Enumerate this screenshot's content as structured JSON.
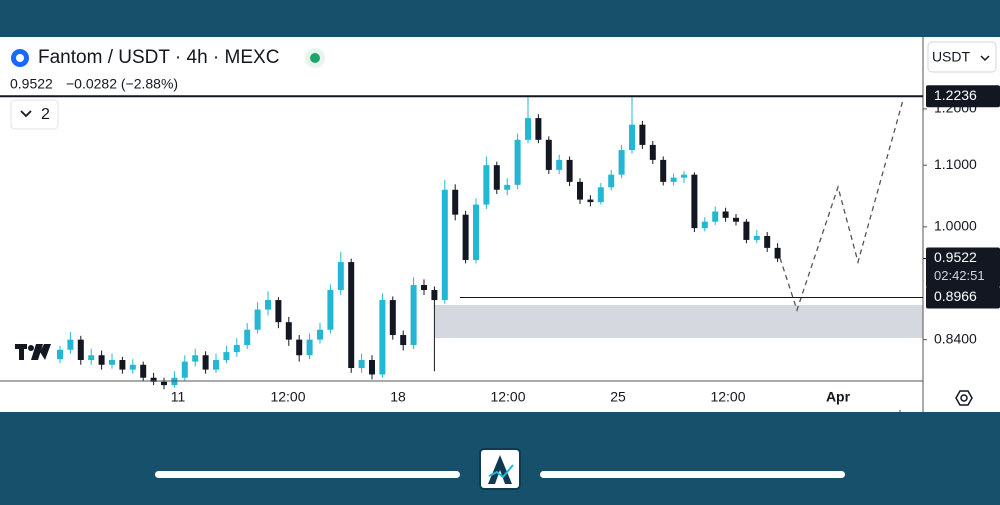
{
  "header": {
    "title": "Fantom / USDT · 4h · MEXC",
    "price": "0.9522",
    "change": "−0.0282 (−2.88%)",
    "indicator_count": "2",
    "currency": "USDT"
  },
  "chart_data": {
    "type": "candlestick",
    "log_scale": true,
    "ylim": [
      0.788,
      1.341
    ],
    "yticks": [
      {
        "value": 1.2,
        "label": "1.2000"
      },
      {
        "value": 1.1,
        "label": "1.1000"
      },
      {
        "value": 1.0,
        "label": "1.0000"
      },
      {
        "value": 0.84,
        "label": "0.8400"
      }
    ],
    "x_labels": [
      "11",
      "12:00",
      "18",
      "12:00",
      "25",
      "12:00",
      "Apr"
    ],
    "up_color": "#22b8d4",
    "down_color": "#131722",
    "levels": [
      1.2236,
      0.8966
    ],
    "last_price": 0.9522,
    "countdown": "02:42:51",
    "open": [
      0.815,
      0.827,
      0.84,
      0.814,
      0.82,
      0.808,
      0.814,
      0.802,
      0.808,
      0.792,
      0.787,
      0.783,
      0.792,
      0.812,
      0.82,
      0.802,
      0.814,
      0.824,
      0.833,
      0.853,
      0.88,
      0.893,
      0.863,
      0.84,
      0.82,
      0.84,
      0.853,
      0.907,
      0.947,
      0.804,
      0.814,
      0.796,
      0.893,
      0.846,
      0.833,
      0.914,
      0.907,
      0.893,
      1.059,
      1.019,
      0.95,
      1.035,
      1.1,
      1.059,
      1.067,
      1.144,
      1.183,
      1.144,
      1.092,
      1.109,
      1.072,
      1.043,
      1.039,
      1.063,
      1.084,
      1.126,
      1.171,
      1.135,
      1.109,
      1.072,
      1.079,
      1.084,
      0.998,
      1.008,
      1.024,
      1.014,
      1.008,
      0.98,
      0.986,
      0.968
    ],
    "high": [
      0.832,
      0.85,
      0.845,
      0.828,
      0.826,
      0.822,
      0.818,
      0.815,
      0.812,
      0.798,
      0.792,
      0.8,
      0.82,
      0.828,
      0.825,
      0.822,
      0.832,
      0.842,
      0.862,
      0.89,
      0.905,
      0.897,
      0.87,
      0.846,
      0.848,
      0.862,
      0.915,
      0.962,
      0.952,
      0.822,
      0.82,
      0.902,
      0.898,
      0.852,
      0.925,
      0.922,
      0.912,
      1.075,
      1.068,
      1.025,
      1.045,
      1.115,
      1.106,
      1.078,
      1.155,
      1.2236,
      1.19,
      1.15,
      1.118,
      1.115,
      1.078,
      1.05,
      1.07,
      1.092,
      1.135,
      1.2236,
      1.178,
      1.142,
      1.115,
      1.086,
      1.09,
      1.088,
      1.015,
      1.032,
      1.03,
      1.02,
      1.012,
      0.995,
      0.992,
      0.975
    ],
    "low": [
      0.81,
      0.822,
      0.808,
      0.808,
      0.802,
      0.803,
      0.797,
      0.797,
      0.788,
      0.783,
      0.778,
      0.78,
      0.788,
      0.806,
      0.797,
      0.798,
      0.81,
      0.818,
      0.828,
      0.848,
      0.872,
      0.855,
      0.832,
      0.812,
      0.815,
      0.835,
      0.848,
      0.9,
      0.798,
      0.798,
      0.79,
      0.792,
      0.84,
      0.826,
      0.828,
      0.9,
      0.8,
      0.888,
      1.01,
      0.945,
      0.945,
      1.028,
      1.052,
      1.05,
      1.06,
      1.138,
      1.138,
      1.085,
      1.085,
      1.065,
      1.036,
      1.032,
      1.035,
      1.058,
      1.078,
      1.12,
      1.128,
      1.102,
      1.066,
      1.066,
      1.07,
      0.992,
      0.993,
      1.003,
      1.008,
      1.002,
      0.975,
      0.975,
      0.962,
      0.947
    ],
    "close": [
      0.827,
      0.84,
      0.814,
      0.82,
      0.808,
      0.814,
      0.802,
      0.808,
      0.792,
      0.787,
      0.783,
      0.792,
      0.812,
      0.82,
      0.802,
      0.814,
      0.824,
      0.833,
      0.853,
      0.88,
      0.893,
      0.863,
      0.84,
      0.82,
      0.84,
      0.853,
      0.907,
      0.947,
      0.804,
      0.814,
      0.796,
      0.893,
      0.846,
      0.833,
      0.914,
      0.907,
      0.893,
      1.059,
      1.019,
      0.95,
      1.035,
      1.1,
      1.059,
      1.067,
      1.144,
      1.183,
      1.144,
      1.092,
      1.109,
      1.072,
      1.043,
      1.039,
      1.063,
      1.084,
      1.126,
      1.171,
      1.135,
      1.109,
      1.072,
      1.079,
      1.084,
      0.998,
      1.008,
      1.024,
      1.014,
      1.008,
      0.98,
      0.986,
      0.968,
      0.9522
    ]
  }
}
